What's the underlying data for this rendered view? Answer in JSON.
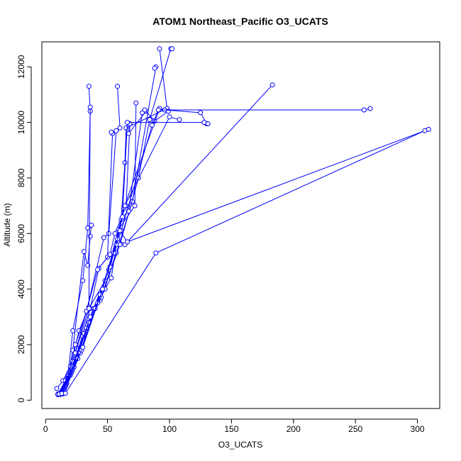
{
  "chart_data": {
    "type": "line",
    "title": "ATOM1 Northeast_Pacific O3_UCATS",
    "xlabel": "O3_UCATS",
    "ylabel": "Altitude (m)",
    "xlim": [
      -3,
      318
    ],
    "ylim": [
      -300,
      12900
    ],
    "x_ticks": [
      0,
      50,
      100,
      150,
      200,
      250,
      300
    ],
    "y_ticks": [
      0,
      2000,
      4000,
      6000,
      8000,
      10000,
      12000
    ],
    "grid": false,
    "legend": "none",
    "colors": {
      "series": "#0000ff",
      "axis": "#000000"
    },
    "marker": "open-circle",
    "series": [
      {
        "x": [
          10,
          12,
          14,
          16,
          18,
          22,
          30,
          34,
          36,
          35
        ],
        "y": [
          200,
          210,
          230,
          500,
          900,
          2500,
          4300,
          6200,
          10400,
          11300
        ]
      },
      {
        "x": [
          11,
          13,
          17,
          22,
          31,
          34,
          36,
          37
        ],
        "y": [
          210,
          230,
          600,
          1800,
          5350,
          4850,
          5900,
          6300
        ]
      },
      {
        "x": [
          10,
          15,
          20,
          27,
          35,
          36
        ],
        "y": [
          220,
          400,
          1200,
          2500,
          3350,
          10550
        ]
      },
      {
        "x": [
          12,
          16,
          19,
          24,
          33,
          47,
          51,
          57,
          60,
          58
        ],
        "y": [
          230,
          500,
          1000,
          2000,
          3200,
          5850,
          6000,
          9700,
          9800,
          11300
        ]
      },
      {
        "x": [
          10,
          18,
          25,
          36,
          43,
          50,
          54,
          53
        ],
        "y": [
          200,
          800,
          1600,
          3300,
          4750,
          5150,
          9600,
          9650
        ]
      },
      {
        "x": [
          9,
          14,
          22,
          33,
          42,
          52,
          56,
          65,
          68,
          67,
          81
        ],
        "y": [
          420,
          700,
          1400,
          3200,
          4700,
          5250,
          6000,
          7000,
          9950,
          9600,
          10400
        ]
      },
      {
        "x": [
          11,
          17,
          28,
          39,
          53,
          59,
          72,
          73
        ],
        "y": [
          240,
          700,
          1900,
          3300,
          4400,
          6150,
          7000,
          10700
        ]
      },
      {
        "x": [
          10,
          16,
          24,
          35,
          48,
          61,
          64,
          65,
          98,
          92
        ],
        "y": [
          210,
          700,
          1700,
          3300,
          4300,
          6500,
          8550,
          9800,
          10500,
          12650
        ]
      },
      {
        "x": [
          12,
          19,
          30,
          44,
          57,
          70,
          89,
          88
        ],
        "y": [
          230,
          900,
          2300,
          3600,
          5300,
          7150,
          12000,
          11950
        ]
      },
      {
        "x": [
          13,
          20,
          31,
          45,
          60,
          75,
          84,
          101,
          102
        ],
        "y": [
          240,
          900,
          2400,
          3700,
          5600,
          8000,
          10100,
          12650,
          12650
        ]
      },
      {
        "x": [
          11,
          21,
          33,
          48,
          62,
          67,
          78,
          80,
          88,
          99
        ],
        "y": [
          220,
          1000,
          2600,
          4000,
          6600,
          6800,
          10350,
          10450,
          10050,
          10400
        ]
      },
      {
        "x": [
          14,
          22,
          35,
          51,
          63,
          92,
          96,
          125,
          130
        ],
        "y": [
          250,
          1100,
          2800,
          4700,
          6900,
          10500,
          10450,
          10350,
          9950
        ]
      },
      {
        "x": [
          12,
          23,
          36,
          52,
          64,
          100,
          108
        ],
        "y": [
          230,
          1200,
          3000,
          4800,
          7000,
          10200,
          10100
        ]
      },
      {
        "x": [
          10,
          26,
          40,
          55,
          61,
          86,
          91,
          257,
          262
        ],
        "y": [
          210,
          1500,
          3300,
          5300,
          6100,
          9900,
          10450,
          10450,
          10500
        ]
      },
      {
        "x": [
          11,
          28,
          42,
          57,
          62,
          66,
          128,
          131
        ],
        "y": [
          220,
          1700,
          3500,
          5600,
          6600,
          10000,
          10000,
          9950
        ]
      },
      {
        "x": [
          15,
          29,
          44,
          58,
          64,
          183
        ],
        "y": [
          260,
          1800,
          3800,
          5800,
          5600,
          11350
        ]
      },
      {
        "x": [
          13,
          30,
          46,
          60,
          66,
          309
        ],
        "y": [
          240,
          1900,
          4000,
          6100,
          5700,
          9750
        ]
      },
      {
        "x": [
          16,
          89,
          306
        ],
        "y": [
          250,
          5300,
          9700
        ]
      }
    ]
  }
}
